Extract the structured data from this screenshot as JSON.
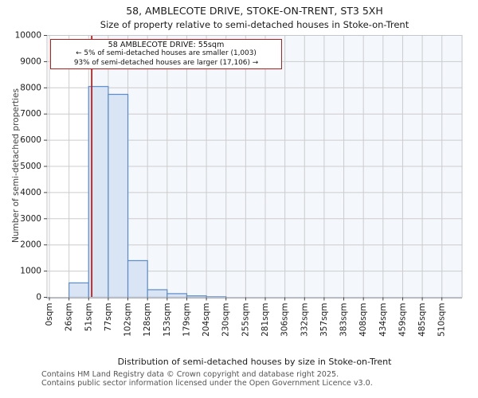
{
  "title": "58, AMBLECOTE DRIVE, STOKE-ON-TRENT, ST3 5XH",
  "subtitle": "Size of property relative to semi-detached houses in Stoke-on-Trent",
  "annotation": {
    "line1": "58 AMBLECOTE DRIVE: 55sqm",
    "line2": "← 5% of semi-detached houses are smaller (1,003)",
    "line3": "93% of semi-detached houses are larger (17,106) →"
  },
  "footer": {
    "line1": "Contains HM Land Registry data © Crown copyright and database right 2025.",
    "line2": "Contains public sector information licensed under the Open Government Licence v3.0."
  },
  "chart_data": {
    "type": "bar",
    "title": "58, AMBLECOTE DRIVE, STOKE-ON-TRENT, ST3 5XH",
    "subtitle": "Size of property relative to semi-detached houses in Stoke-on-Trent",
    "xlabel": "Distribution of semi-detached houses by size in Stoke-on-Trent",
    "ylabel": "Number of semi-detached properties",
    "bin_width_sqm": 25.5,
    "x_tick_sqm": [
      0,
      25.5,
      51,
      76.5,
      102,
      127.5,
      153,
      178.5,
      204,
      229.5,
      255,
      280.5,
      306,
      331.5,
      357,
      382.5,
      408,
      433.5,
      459,
      484.5,
      510
    ],
    "x_tick_labels": [
      "0sqm",
      "26sqm",
      "51sqm",
      "77sqm",
      "102sqm",
      "128sqm",
      "153sqm",
      "179sqm",
      "204sqm",
      "230sqm",
      "255sqm",
      "281sqm",
      "306sqm",
      "332sqm",
      "357sqm",
      "383sqm",
      "408sqm",
      "434sqm",
      "459sqm",
      "485sqm",
      "510sqm"
    ],
    "values": [
      0,
      550,
      8050,
      7750,
      1400,
      290,
      140,
      55,
      20,
      0,
      0,
      0,
      0,
      0,
      0,
      0,
      0,
      0,
      0,
      0
    ],
    "y_ticks": [
      0,
      1000,
      2000,
      3000,
      4000,
      5000,
      6000,
      7000,
      8000,
      9000,
      10000
    ],
    "ylim": [
      0,
      10000
    ],
    "grid": true,
    "legend": "none",
    "marker_sqm": 55,
    "marker_label": "58 AMBLECOTE DRIVE: 55sqm",
    "smaller_count": "1,003",
    "smaller_pct": "5%",
    "larger_count": "17,106",
    "larger_pct": "93%",
    "colors": {
      "bar_fill": "#d9e4f4",
      "bar_stroke": "#5b8cca",
      "marker_line": "#b42020",
      "annotation_border": "#b42020",
      "grid_line": "#cccccc",
      "spine": "#c3c6cc",
      "bottom_spine": "#b6b9bf",
      "shade_right_of_marker": "rgba(110,150,210,0.08)",
      "tick_text": "#1a1a1a"
    }
  }
}
